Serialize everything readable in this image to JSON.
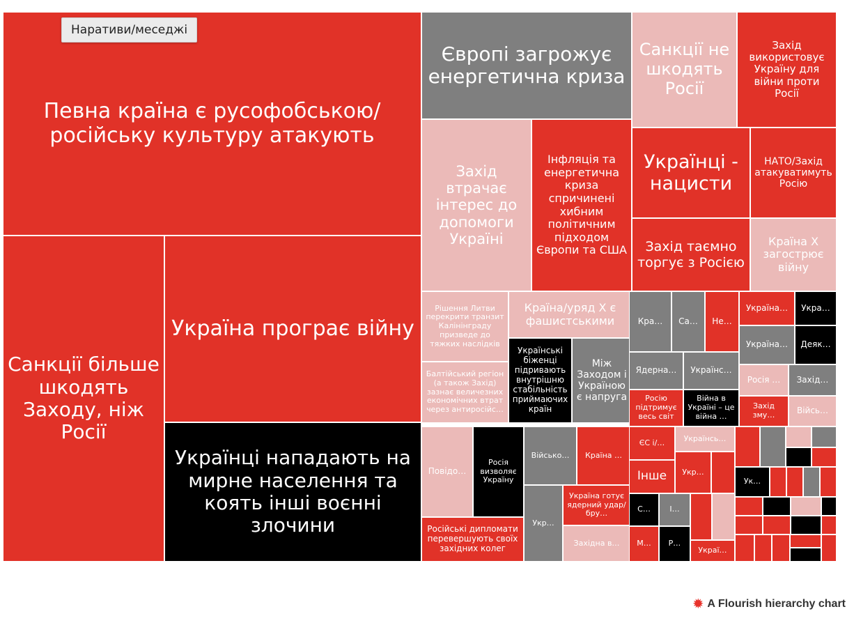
{
  "header": {
    "filter_tag": "Наративи/меседжі"
  },
  "footer": {
    "credit": "A Flourish hierarchy chart",
    "credit_icon": "flourish-flower-icon"
  },
  "colors": {
    "red": "#e13228",
    "gray": "#7f7f7f",
    "pink": "#ebbab8",
    "black": "#000000"
  },
  "chart_data": {
    "type": "treemap",
    "title": "",
    "legend": "none",
    "nodes": [
      {
        "label": "Певна країна є русофобською/російську культуру атакують",
        "value": 187,
        "color": "red"
      },
      {
        "label": "Санкції більше шкодять Заходу, ніж Росії",
        "value": 104,
        "color": "red"
      },
      {
        "label": "Україна програє війну",
        "value": 102,
        "color": "red"
      },
      {
        "label": "Українці нападають на мирне населення та коять інші воєнні злочини",
        "value": 75,
        "color": "black"
      },
      {
        "label": "Європі загрожує енергетична криза",
        "value": 48,
        "color": "gray"
      },
      {
        "label": "Санкції не шкодять Росії",
        "value": 27,
        "color": "pink"
      },
      {
        "label": "Захід використовує Україну для війни проти Росії",
        "value": 27,
        "color": "red"
      },
      {
        "label": "Захід втрачає інтерес до допомоги Україні",
        "value": 38,
        "color": "pink"
      },
      {
        "label": "Інфляція та енергетична криза спричинені хибним політичним підходом Європи та США",
        "value": 37,
        "color": "red"
      },
      {
        "label": "Українці - нацисти",
        "value": 19,
        "color": "red"
      },
      {
        "label": "НАТО/Захід атакуватимуть Росію",
        "value": 16,
        "color": "red"
      },
      {
        "label": "Захід таємно торгує з Росією",
        "value": 16,
        "color": "red"
      },
      {
        "label": "Країна X загострює війну",
        "value": 14,
        "color": "pink"
      },
      {
        "label": "Рішення Литви перекрити транзит Калінінграду призведе до тяжких наслідків",
        "value": 10,
        "color": "pink"
      },
      {
        "label": "Балтійський регіон (а також Захід) зазнає величезних економічних втрат через антиросійс…",
        "value": 9,
        "color": "pink"
      },
      {
        "label": "Країна/уряд X є фашистськими",
        "value": 11,
        "color": "pink"
      },
      {
        "label": "Українські біженці підривають внутрішню стабільність приймаючих країн",
        "value": 9,
        "color": "black"
      },
      {
        "label": "Між Заходом і Україною є напруга",
        "value": 9,
        "color": "gray"
      },
      {
        "label": "Крa…",
        "value": 3,
        "color": "gray"
      },
      {
        "label": "Са…",
        "value": 2,
        "color": "gray"
      },
      {
        "label": "Не…",
        "value": 2,
        "color": "red"
      },
      {
        "label": "Україна…",
        "value": 2,
        "color": "red"
      },
      {
        "label": "Укра…",
        "value": 2,
        "color": "black"
      },
      {
        "label": "Україна…",
        "value": 2,
        "color": "gray"
      },
      {
        "label": "Деяк…",
        "value": 2,
        "color": "black"
      },
      {
        "label": "Ядерна…",
        "value": 3,
        "color": "gray"
      },
      {
        "label": "Українс…",
        "value": 3,
        "color": "gray"
      },
      {
        "label": "Росія …",
        "value": 2,
        "color": "pink"
      },
      {
        "label": "Захід…",
        "value": 2,
        "color": "gray"
      },
      {
        "label": "Росію підтримує весь світ",
        "value": 2,
        "color": "red"
      },
      {
        "label": "Війна в Україні – це війна …",
        "value": 2,
        "color": "black"
      },
      {
        "label": "Захід зму…",
        "value": 2,
        "color": "red"
      },
      {
        "label": "Війсь…",
        "value": 2,
        "color": "pink"
      },
      {
        "label": "Повідо…",
        "value": 4,
        "color": "pink"
      },
      {
        "label": "Росія визволяє Україну",
        "value": 4,
        "color": "black"
      },
      {
        "label": "Російські дипломати перевершують своїх західних колег",
        "value": 4,
        "color": "red"
      },
      {
        "label": "Військо…",
        "value": 4,
        "color": "gray"
      },
      {
        "label": "Країна …",
        "value": 4,
        "color": "red"
      },
      {
        "label": "Укр…",
        "value": 4,
        "color": "gray"
      },
      {
        "label": "Україна готує ядерний удар/бру…",
        "value": 2,
        "color": "red"
      },
      {
        "label": "Західна в…",
        "value": 3,
        "color": "pink"
      },
      {
        "label": "ЄС і/…",
        "value": 2,
        "color": "red"
      },
      {
        "label": "Українсь…",
        "value": 2,
        "color": "pink"
      },
      {
        "label": "Інше",
        "value": 2,
        "color": "red"
      },
      {
        "label": "Укр…",
        "value": 2,
        "color": "red"
      },
      {
        "label": "С…",
        "value": 1,
        "color": "black"
      },
      {
        "label": "І…",
        "value": 1,
        "color": "gray"
      },
      {
        "label": "М…",
        "value": 1,
        "color": "red"
      },
      {
        "label": "Р…",
        "value": 1,
        "color": "black"
      },
      {
        "label": "Украї…",
        "value": 1,
        "color": "red"
      },
      {
        "label": "Ук…",
        "value": 1,
        "color": "black"
      },
      {
        "label": "",
        "value": 1,
        "color": "red"
      },
      {
        "label": "",
        "value": 1,
        "color": "red"
      },
      {
        "label": "",
        "value": 1,
        "color": "pink"
      },
      {
        "label": "",
        "value": 1,
        "color": "red"
      },
      {
        "label": "",
        "value": 1,
        "color": "gray"
      },
      {
        "label": "",
        "value": 1,
        "color": "pink"
      },
      {
        "label": "",
        "value": 1,
        "color": "gray"
      },
      {
        "label": "",
        "value": 1,
        "color": "black"
      },
      {
        "label": "",
        "value": 1,
        "color": "red"
      },
      {
        "label": "",
        "value": 1,
        "color": "red"
      },
      {
        "label": "",
        "value": 1,
        "color": "red"
      },
      {
        "label": "",
        "value": 1,
        "color": "gray"
      },
      {
        "label": "",
        "value": 1,
        "color": "red"
      },
      {
        "label": "",
        "value": 1,
        "color": "red"
      },
      {
        "label": "",
        "value": 1,
        "color": "black"
      },
      {
        "label": "",
        "value": 1,
        "color": "pink"
      },
      {
        "label": "",
        "value": 1,
        "color": "black"
      },
      {
        "label": "",
        "value": 1,
        "color": "red"
      },
      {
        "label": "",
        "value": 1,
        "color": "red"
      },
      {
        "label": "",
        "value": 1,
        "color": "black"
      },
      {
        "label": "",
        "value": 1,
        "color": "red"
      },
      {
        "label": "",
        "value": 1,
        "color": "red"
      },
      {
        "label": "",
        "value": 1,
        "color": "red"
      },
      {
        "label": "",
        "value": 1,
        "color": "red"
      },
      {
        "label": "",
        "value": 1,
        "color": "red"
      },
      {
        "label": "",
        "value": 1,
        "color": "black"
      },
      {
        "label": "",
        "value": 1,
        "color": "red"
      },
      {
        "label": "",
        "value": 1,
        "color": "gray"
      },
      {
        "label": "",
        "value": 1,
        "color": "red"
      },
      {
        "label": "",
        "value": 1,
        "color": "black"
      }
    ]
  }
}
